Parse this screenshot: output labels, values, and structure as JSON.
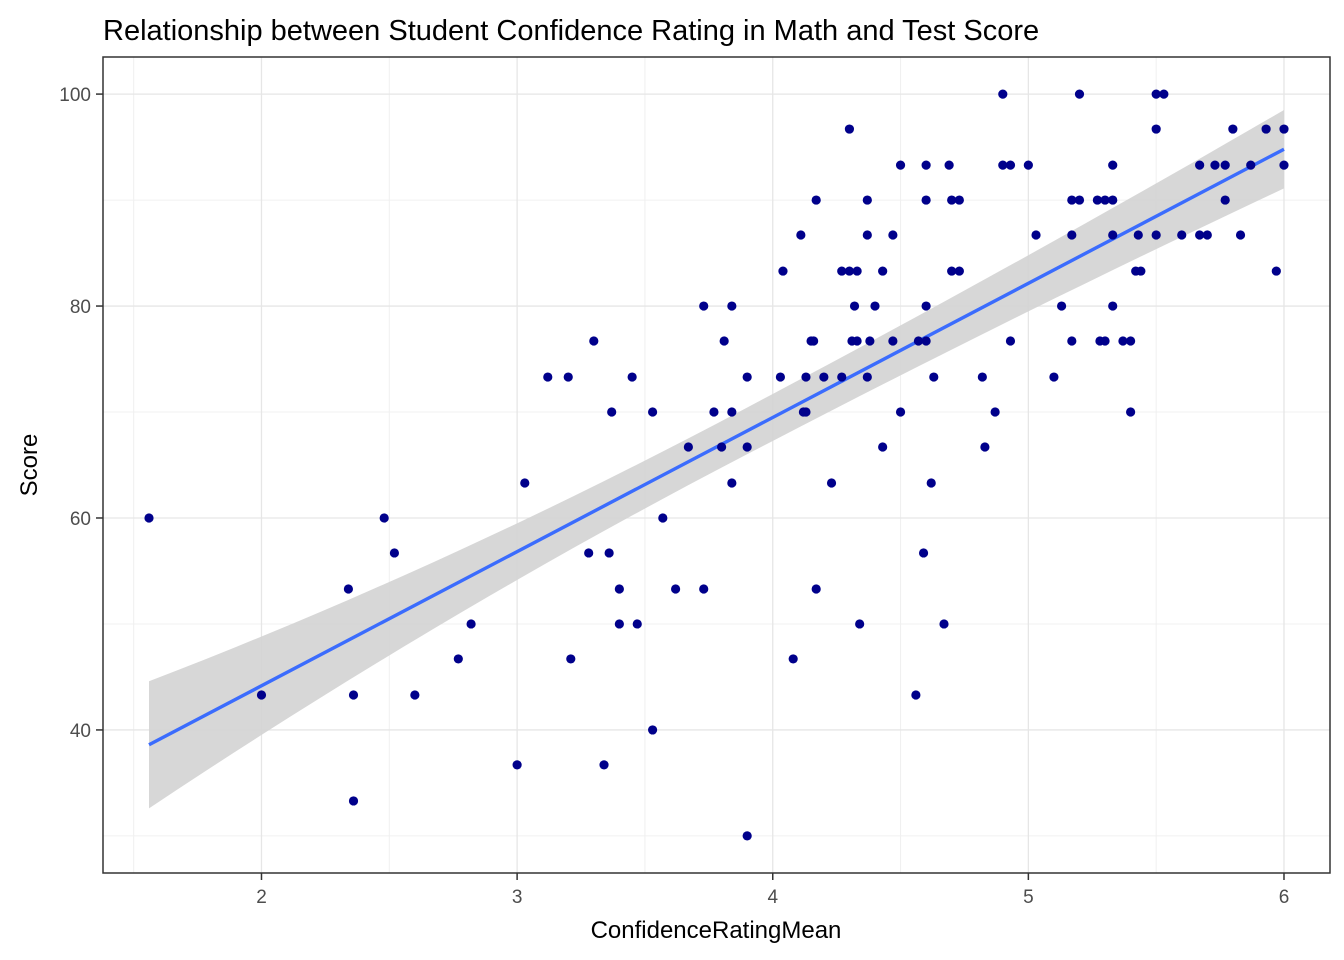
{
  "chart_data": {
    "type": "scatter",
    "title": "Relationship between Student Confidence Rating in Math and Test Score",
    "xlabel": "ConfidenceRatingMean",
    "ylabel": "Score",
    "xlim": [
      1.38,
      6.18
    ],
    "ylim": [
      26.5,
      103.5
    ],
    "x_ticks": [
      2,
      3,
      4,
      5,
      6
    ],
    "x_tick_labels": [
      "2",
      "3",
      "4",
      "5",
      "6"
    ],
    "y_ticks": [
      40,
      60,
      80,
      100
    ],
    "y_tick_labels": [
      "40",
      "60",
      "80",
      "100"
    ],
    "x_minor_ticks": [
      1.5,
      2.5,
      3.5,
      4.5,
      5.5
    ],
    "y_minor_ticks": [
      30,
      50,
      70,
      90
    ],
    "grid": true,
    "point_color": "#00008B",
    "line_color": "#3366FF",
    "band_color": "#D3D3D3",
    "regression": {
      "method": "lm",
      "x": [
        1.56,
        6.0
      ],
      "fit": [
        38.6,
        94.8
      ],
      "ci_lower": [
        32.6,
        91.1
      ],
      "ci_upper": [
        44.6,
        98.5
      ]
    },
    "points": [
      [
        1.56,
        60.0
      ],
      [
        2.0,
        43.3
      ],
      [
        2.34,
        53.3
      ],
      [
        2.36,
        43.3
      ],
      [
        2.36,
        33.3
      ],
      [
        2.48,
        60.0
      ],
      [
        2.52,
        56.7
      ],
      [
        2.6,
        43.3
      ],
      [
        2.77,
        46.7
      ],
      [
        2.82,
        50.0
      ],
      [
        3.0,
        36.7
      ],
      [
        3.03,
        63.3
      ],
      [
        3.12,
        73.3
      ],
      [
        3.2,
        73.3
      ],
      [
        3.21,
        46.7
      ],
      [
        3.28,
        56.7
      ],
      [
        3.3,
        76.7
      ],
      [
        3.34,
        36.7
      ],
      [
        3.36,
        56.7
      ],
      [
        3.37,
        70.0
      ],
      [
        3.4,
        53.3
      ],
      [
        3.4,
        50.0
      ],
      [
        3.45,
        73.3
      ],
      [
        3.47,
        50.0
      ],
      [
        3.53,
        70.0
      ],
      [
        3.53,
        40.0
      ],
      [
        3.57,
        60.0
      ],
      [
        3.62,
        53.3
      ],
      [
        3.67,
        66.7
      ],
      [
        3.73,
        80.0
      ],
      [
        3.73,
        53.3
      ],
      [
        3.77,
        70.0
      ],
      [
        3.8,
        66.7
      ],
      [
        3.81,
        76.7
      ],
      [
        3.84,
        80.0
      ],
      [
        3.84,
        70.0
      ],
      [
        3.84,
        63.3
      ],
      [
        3.9,
        73.3
      ],
      [
        3.9,
        66.7
      ],
      [
        3.9,
        30.0
      ],
      [
        4.03,
        73.3
      ],
      [
        4.04,
        83.3
      ],
      [
        4.08,
        46.7
      ],
      [
        4.11,
        86.7
      ],
      [
        4.12,
        70.0
      ],
      [
        4.13,
        73.3
      ],
      [
        4.13,
        70.0
      ],
      [
        4.15,
        76.7
      ],
      [
        4.16,
        76.7
      ],
      [
        4.17,
        90.0
      ],
      [
        4.17,
        53.3
      ],
      [
        4.2,
        73.3
      ],
      [
        4.23,
        63.3
      ],
      [
        4.27,
        73.3
      ],
      [
        4.27,
        83.3
      ],
      [
        4.3,
        96.7
      ],
      [
        4.3,
        83.3
      ],
      [
        4.31,
        76.7
      ],
      [
        4.32,
        80.0
      ],
      [
        4.33,
        83.3
      ],
      [
        4.33,
        76.7
      ],
      [
        4.34,
        50.0
      ],
      [
        4.37,
        90.0
      ],
      [
        4.37,
        86.7
      ],
      [
        4.37,
        73.3
      ],
      [
        4.38,
        76.7
      ],
      [
        4.4,
        80.0
      ],
      [
        4.43,
        83.3
      ],
      [
        4.43,
        66.7
      ],
      [
        4.47,
        86.7
      ],
      [
        4.47,
        76.7
      ],
      [
        4.5,
        93.3
      ],
      [
        4.5,
        70.0
      ],
      [
        4.56,
        43.3
      ],
      [
        4.57,
        76.7
      ],
      [
        4.59,
        56.7
      ],
      [
        4.6,
        93.3
      ],
      [
        4.6,
        90.0
      ],
      [
        4.6,
        80.0
      ],
      [
        4.6,
        76.7
      ],
      [
        4.62,
        63.3
      ],
      [
        4.63,
        73.3
      ],
      [
        4.67,
        50.0
      ],
      [
        4.69,
        93.3
      ],
      [
        4.7,
        90.0
      ],
      [
        4.7,
        83.3
      ],
      [
        4.73,
        90.0
      ],
      [
        4.73,
        83.3
      ],
      [
        4.82,
        73.3
      ],
      [
        4.83,
        66.7
      ],
      [
        4.87,
        70.0
      ],
      [
        4.9,
        100.0
      ],
      [
        4.9,
        93.3
      ],
      [
        4.93,
        93.3
      ],
      [
        4.93,
        76.7
      ],
      [
        5.0,
        93.3
      ],
      [
        5.03,
        86.7
      ],
      [
        5.1,
        73.3
      ],
      [
        5.13,
        80.0
      ],
      [
        5.17,
        90.0
      ],
      [
        5.17,
        86.7
      ],
      [
        5.17,
        76.7
      ],
      [
        5.2,
        100.0
      ],
      [
        5.2,
        90.0
      ],
      [
        5.27,
        90.0
      ],
      [
        5.28,
        76.7
      ],
      [
        5.3,
        90.0
      ],
      [
        5.3,
        76.7
      ],
      [
        5.33,
        93.3
      ],
      [
        5.33,
        90.0
      ],
      [
        5.33,
        86.7
      ],
      [
        5.33,
        80.0
      ],
      [
        5.37,
        76.7
      ],
      [
        5.4,
        76.7
      ],
      [
        5.4,
        70.0
      ],
      [
        5.42,
        83.3
      ],
      [
        5.43,
        86.7
      ],
      [
        5.44,
        83.3
      ],
      [
        5.5,
        100.0
      ],
      [
        5.5,
        96.7
      ],
      [
        5.5,
        86.7
      ],
      [
        5.53,
        100.0
      ],
      [
        5.6,
        86.7
      ],
      [
        5.67,
        93.3
      ],
      [
        5.67,
        86.7
      ],
      [
        5.7,
        86.7
      ],
      [
        5.73,
        93.3
      ],
      [
        5.77,
        93.3
      ],
      [
        5.77,
        90.0
      ],
      [
        5.8,
        96.7
      ],
      [
        5.83,
        86.7
      ],
      [
        5.87,
        93.3
      ],
      [
        5.93,
        96.7
      ],
      [
        5.97,
        83.3
      ],
      [
        6.0,
        96.7
      ],
      [
        6.0,
        93.3
      ]
    ]
  }
}
